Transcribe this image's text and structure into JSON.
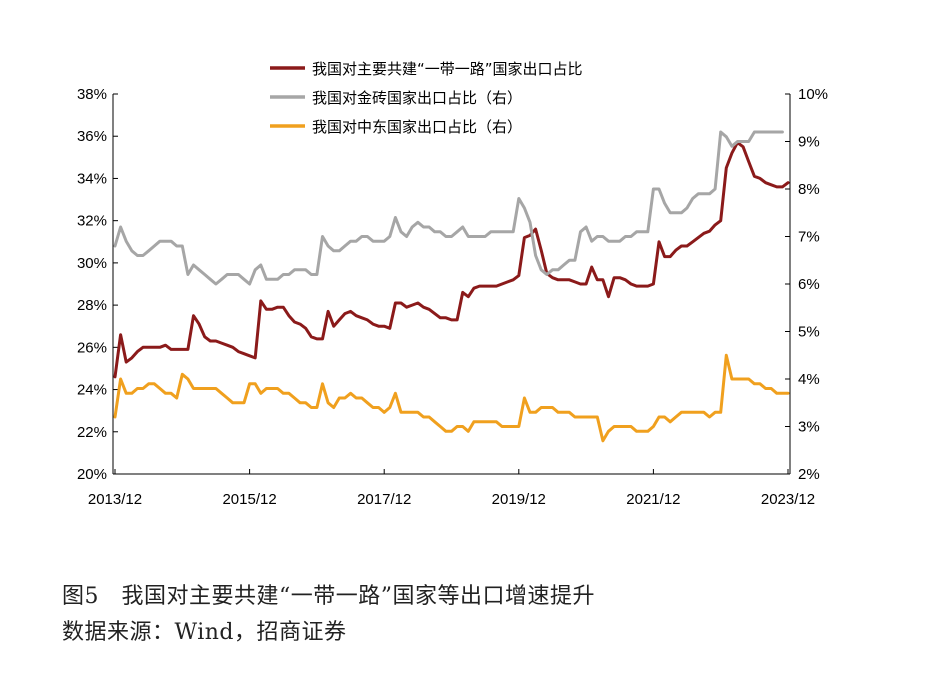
{
  "figure": {
    "title": "图5　我国对主要共建“一带一路”国家等出口增速提升",
    "source": "数据来源：Wind，招商证券"
  },
  "chart_data": {
    "type": "line",
    "x_ticks": [
      "2013/12",
      "2015/12",
      "2017/12",
      "2019/12",
      "2021/12",
      "2023/12"
    ],
    "y_left": {
      "min": 20,
      "max": 38,
      "step": 2,
      "ticks": [
        "20%",
        "22%",
        "24%",
        "26%",
        "28%",
        "30%",
        "32%",
        "34%",
        "36%",
        "38%"
      ]
    },
    "y_right": {
      "min": 2,
      "max": 10,
      "step": 1,
      "ticks": [
        "2%",
        "3%",
        "4%",
        "5%",
        "6%",
        "7%",
        "8%",
        "9%",
        "10%"
      ]
    },
    "grid": false,
    "legend_position": "top-center",
    "x_start": "2013-12",
    "series": [
      {
        "name": "我国对主要共建“一带一路”国家出口占比",
        "axis": "left",
        "color": "#8b1a1a",
        "values": [
          24.6,
          26.6,
          25.3,
          25.5,
          25.8,
          26.0,
          26.0,
          26.0,
          26.0,
          26.1,
          25.9,
          25.9,
          25.9,
          25.9,
          27.5,
          27.1,
          26.5,
          26.3,
          26.3,
          26.2,
          26.1,
          26.0,
          25.8,
          25.7,
          25.6,
          25.5,
          28.2,
          27.8,
          27.8,
          27.9,
          27.9,
          27.5,
          27.2,
          27.1,
          26.9,
          26.5,
          26.4,
          26.4,
          27.7,
          27.0,
          27.3,
          27.6,
          27.7,
          27.5,
          27.4,
          27.3,
          27.1,
          27.0,
          27.0,
          26.9,
          28.1,
          28.1,
          27.9,
          28.0,
          28.1,
          27.9,
          27.8,
          27.6,
          27.4,
          27.4,
          27.3,
          27.3,
          28.6,
          28.4,
          28.8,
          28.9,
          28.9,
          28.9,
          28.9,
          29.0,
          29.1,
          29.2,
          29.4,
          31.2,
          31.3,
          31.6,
          30.6,
          29.5,
          29.3,
          29.2,
          29.2,
          29.2,
          29.1,
          29.0,
          29.0,
          29.8,
          29.2,
          29.2,
          28.4,
          29.3,
          29.3,
          29.2,
          29.0,
          28.9,
          28.9,
          28.9,
          29.0,
          31.0,
          30.3,
          30.3,
          30.6,
          30.8,
          30.8,
          31.0,
          31.2,
          31.4,
          31.5,
          31.8,
          32.0,
          34.5,
          35.2,
          35.7,
          35.5,
          34.8,
          34.1,
          34.0,
          33.8,
          33.7,
          33.6,
          33.6,
          33.8
        ]
      },
      {
        "name": "我国对金砖国家出口占比（右）",
        "axis": "right",
        "color": "#a6a6a6",
        "values": [
          6.8,
          7.2,
          6.9,
          6.7,
          6.6,
          6.6,
          6.7,
          6.8,
          6.9,
          6.9,
          6.9,
          6.8,
          6.8,
          6.2,
          6.4,
          6.3,
          6.2,
          6.1,
          6.0,
          6.1,
          6.2,
          6.2,
          6.2,
          6.1,
          6.0,
          6.3,
          6.4,
          6.1,
          6.1,
          6.1,
          6.2,
          6.2,
          6.3,
          6.3,
          6.3,
          6.2,
          6.2,
          7.0,
          6.8,
          6.7,
          6.7,
          6.8,
          6.9,
          6.9,
          7.0,
          7.0,
          6.9,
          6.9,
          6.9,
          7.0,
          7.4,
          7.1,
          7.0,
          7.2,
          7.3,
          7.2,
          7.2,
          7.1,
          7.1,
          7.0,
          7.0,
          7.1,
          7.2,
          7.0,
          7.0,
          7.0,
          7.0,
          7.1,
          7.1,
          7.1,
          7.1,
          7.1,
          7.8,
          7.6,
          7.3,
          6.6,
          6.3,
          6.2,
          6.3,
          6.3,
          6.4,
          6.5,
          6.5,
          7.1,
          7.2,
          6.9,
          7.0,
          7.0,
          6.9,
          6.9,
          6.9,
          7.0,
          7.0,
          7.1,
          7.1,
          7.1,
          8.0,
          8.0,
          7.7,
          7.5,
          7.5,
          7.5,
          7.6,
          7.8,
          7.9,
          7.9,
          7.9,
          8.0,
          9.2,
          9.1,
          8.9,
          9.0,
          9.0,
          9.0,
          9.2,
          9.2,
          9.2,
          9.2,
          9.2,
          9.2
        ]
      },
      {
        "name": "我国对中东国家出口占比（右）",
        "axis": "right",
        "color": "#f0a01e",
        "values": [
          3.2,
          4.0,
          3.7,
          3.7,
          3.8,
          3.8,
          3.9,
          3.9,
          3.8,
          3.7,
          3.7,
          3.6,
          4.1,
          4.0,
          3.8,
          3.8,
          3.8,
          3.8,
          3.8,
          3.7,
          3.6,
          3.5,
          3.5,
          3.5,
          3.9,
          3.9,
          3.7,
          3.8,
          3.8,
          3.8,
          3.7,
          3.7,
          3.6,
          3.5,
          3.5,
          3.4,
          3.4,
          3.9,
          3.5,
          3.4,
          3.6,
          3.6,
          3.7,
          3.6,
          3.6,
          3.5,
          3.4,
          3.4,
          3.3,
          3.4,
          3.7,
          3.3,
          3.3,
          3.3,
          3.3,
          3.2,
          3.2,
          3.1,
          3.0,
          2.9,
          2.9,
          3.0,
          3.0,
          2.9,
          3.1,
          3.1,
          3.1,
          3.1,
          3.1,
          3.0,
          3.0,
          3.0,
          3.0,
          3.6,
          3.3,
          3.3,
          3.4,
          3.4,
          3.4,
          3.3,
          3.3,
          3.3,
          3.2,
          3.2,
          3.2,
          3.2,
          3.2,
          2.7,
          2.9,
          3.0,
          3.0,
          3.0,
          3.0,
          2.9,
          2.9,
          2.9,
          3.0,
          3.2,
          3.2,
          3.1,
          3.2,
          3.3,
          3.3,
          3.3,
          3.3,
          3.3,
          3.2,
          3.3,
          3.3,
          4.5,
          4.0,
          4.0,
          4.0,
          4.0,
          3.9,
          3.9,
          3.8,
          3.8,
          3.7,
          3.7,
          3.7
        ]
      }
    ]
  }
}
